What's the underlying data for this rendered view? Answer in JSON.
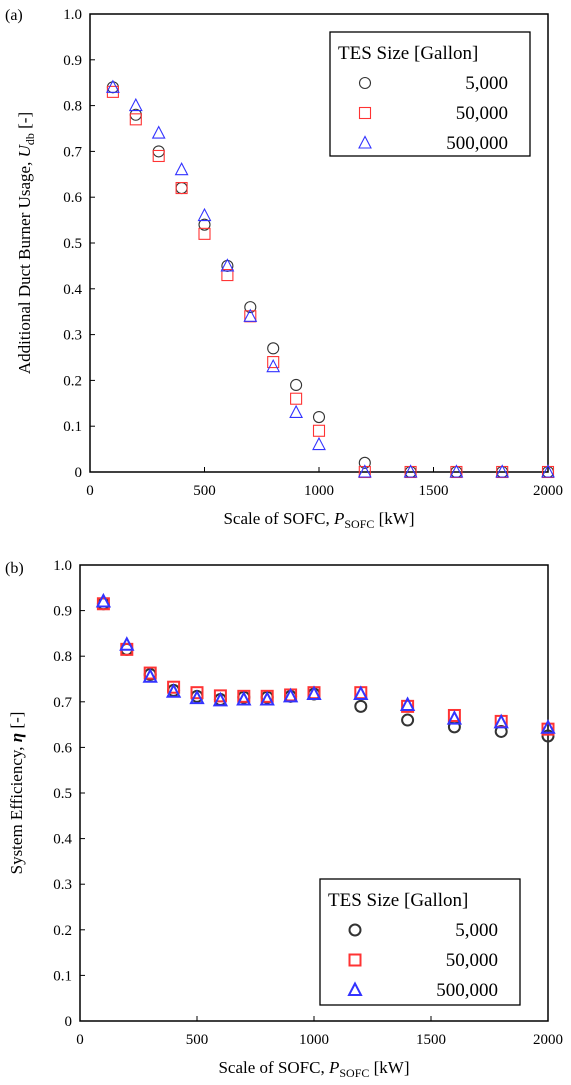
{
  "colors": {
    "s5000": "#333333",
    "s50000": "#ff3333",
    "s500000": "#3333ff",
    "axis": "#000000"
  },
  "chart_data": [
    {
      "type": "scatter",
      "panel_label": "(a)",
      "xlabel": {
        "main": "Scale of SOFC, ",
        "var": "P",
        "sub": "SOFC",
        "unit": " [kW]"
      },
      "ylabel": {
        "main": "Additional Duct Burner Usage, ",
        "var": "U",
        "sub": "db",
        "unit": " [-]"
      },
      "xlim": [
        0,
        2000
      ],
      "ylim": [
        0,
        1.0
      ],
      "xticks": [
        "0",
        "500",
        "1000",
        "1500",
        "2000"
      ],
      "yticks": [
        "0",
        "0.1",
        "0.2",
        "0.3",
        "0.4",
        "0.5",
        "0.6",
        "0.7",
        "0.8",
        "0.9",
        "1.0"
      ],
      "legend": {
        "title": "TES Size [Gallon]",
        "position": "top-right",
        "labels": [
          "5,000",
          "50,000",
          "500,000"
        ]
      },
      "series": [
        {
          "name": "5,000",
          "marker": "circle",
          "color": "#333333",
          "x": [
            100,
            200,
            300,
            400,
            500,
            600,
            700,
            800,
            900,
            1000,
            1200,
            1400,
            1600,
            1800,
            2000
          ],
          "y": [
            0.84,
            0.78,
            0.7,
            0.62,
            0.54,
            0.45,
            0.36,
            0.27,
            0.19,
            0.12,
            0.02,
            0.0,
            0.0,
            0.0,
            0.0
          ]
        },
        {
          "name": "50,000",
          "marker": "square",
          "color": "#ff3333",
          "x": [
            100,
            200,
            300,
            400,
            500,
            600,
            700,
            800,
            900,
            1000,
            1200,
            1400,
            1600,
            1800,
            2000
          ],
          "y": [
            0.83,
            0.77,
            0.69,
            0.62,
            0.52,
            0.43,
            0.34,
            0.24,
            0.16,
            0.09,
            0.0,
            0.0,
            0.0,
            0.0,
            0.0
          ]
        },
        {
          "name": "500,000",
          "marker": "triangle",
          "color": "#3333ff",
          "x": [
            100,
            200,
            300,
            400,
            500,
            600,
            700,
            800,
            900,
            1000,
            1200,
            1400,
            1600,
            1800,
            2000
          ],
          "y": [
            0.84,
            0.8,
            0.74,
            0.66,
            0.56,
            0.45,
            0.34,
            0.23,
            0.13,
            0.06,
            0.0,
            0.0,
            0.0,
            0.0,
            0.0
          ]
        }
      ]
    },
    {
      "type": "scatter",
      "panel_label": "(b)",
      "xlabel": {
        "main": "Scale of SOFC, ",
        "var": "P",
        "sub": "SOFC",
        "unit": " [kW]"
      },
      "ylabel": {
        "main": "System Efficiency, ",
        "var": "η",
        "sub": "",
        "unit": " [-]"
      },
      "xlim": [
        0,
        2000
      ],
      "ylim": [
        0,
        1.0
      ],
      "xticks": [
        "0",
        "500",
        "1000",
        "1500",
        "2000"
      ],
      "yticks": [
        "0",
        "0.1",
        "0.2",
        "0.3",
        "0.4",
        "0.5",
        "0.6",
        "0.7",
        "0.8",
        "0.9",
        "1.0"
      ],
      "legend": {
        "title": "TES Size [Gallon]",
        "position": "bottom-right",
        "labels": [
          "5,000",
          "50,000",
          "500,000"
        ]
      },
      "series": [
        {
          "name": "5,000",
          "marker": "circle",
          "color": "#333333",
          "x": [
            100,
            200,
            300,
            400,
            500,
            600,
            700,
            800,
            900,
            1000,
            1200,
            1400,
            1600,
            1800,
            2000
          ],
          "y": [
            0.915,
            0.815,
            0.76,
            0.725,
            0.712,
            0.705,
            0.71,
            0.71,
            0.712,
            0.717,
            0.69,
            0.66,
            0.645,
            0.635,
            0.625
          ]
        },
        {
          "name": "50,000",
          "marker": "square",
          "color": "#ff3333",
          "x": [
            100,
            200,
            300,
            400,
            500,
            600,
            700,
            800,
            900,
            1000,
            1200,
            1400,
            1600,
            1800,
            2000
          ],
          "y": [
            0.915,
            0.815,
            0.763,
            0.732,
            0.72,
            0.713,
            0.712,
            0.712,
            0.715,
            0.72,
            0.72,
            0.69,
            0.67,
            0.657,
            0.64
          ]
        },
        {
          "name": "500,000",
          "marker": "triangle",
          "color": "#3333ff",
          "x": [
            100,
            200,
            300,
            400,
            500,
            600,
            700,
            800,
            900,
            1000,
            1200,
            1400,
            1600,
            1800,
            2000
          ],
          "y": [
            0.92,
            0.825,
            0.755,
            0.722,
            0.708,
            0.703,
            0.705,
            0.705,
            0.712,
            0.717,
            0.717,
            0.693,
            0.663,
            0.655,
            0.643
          ]
        }
      ]
    }
  ]
}
